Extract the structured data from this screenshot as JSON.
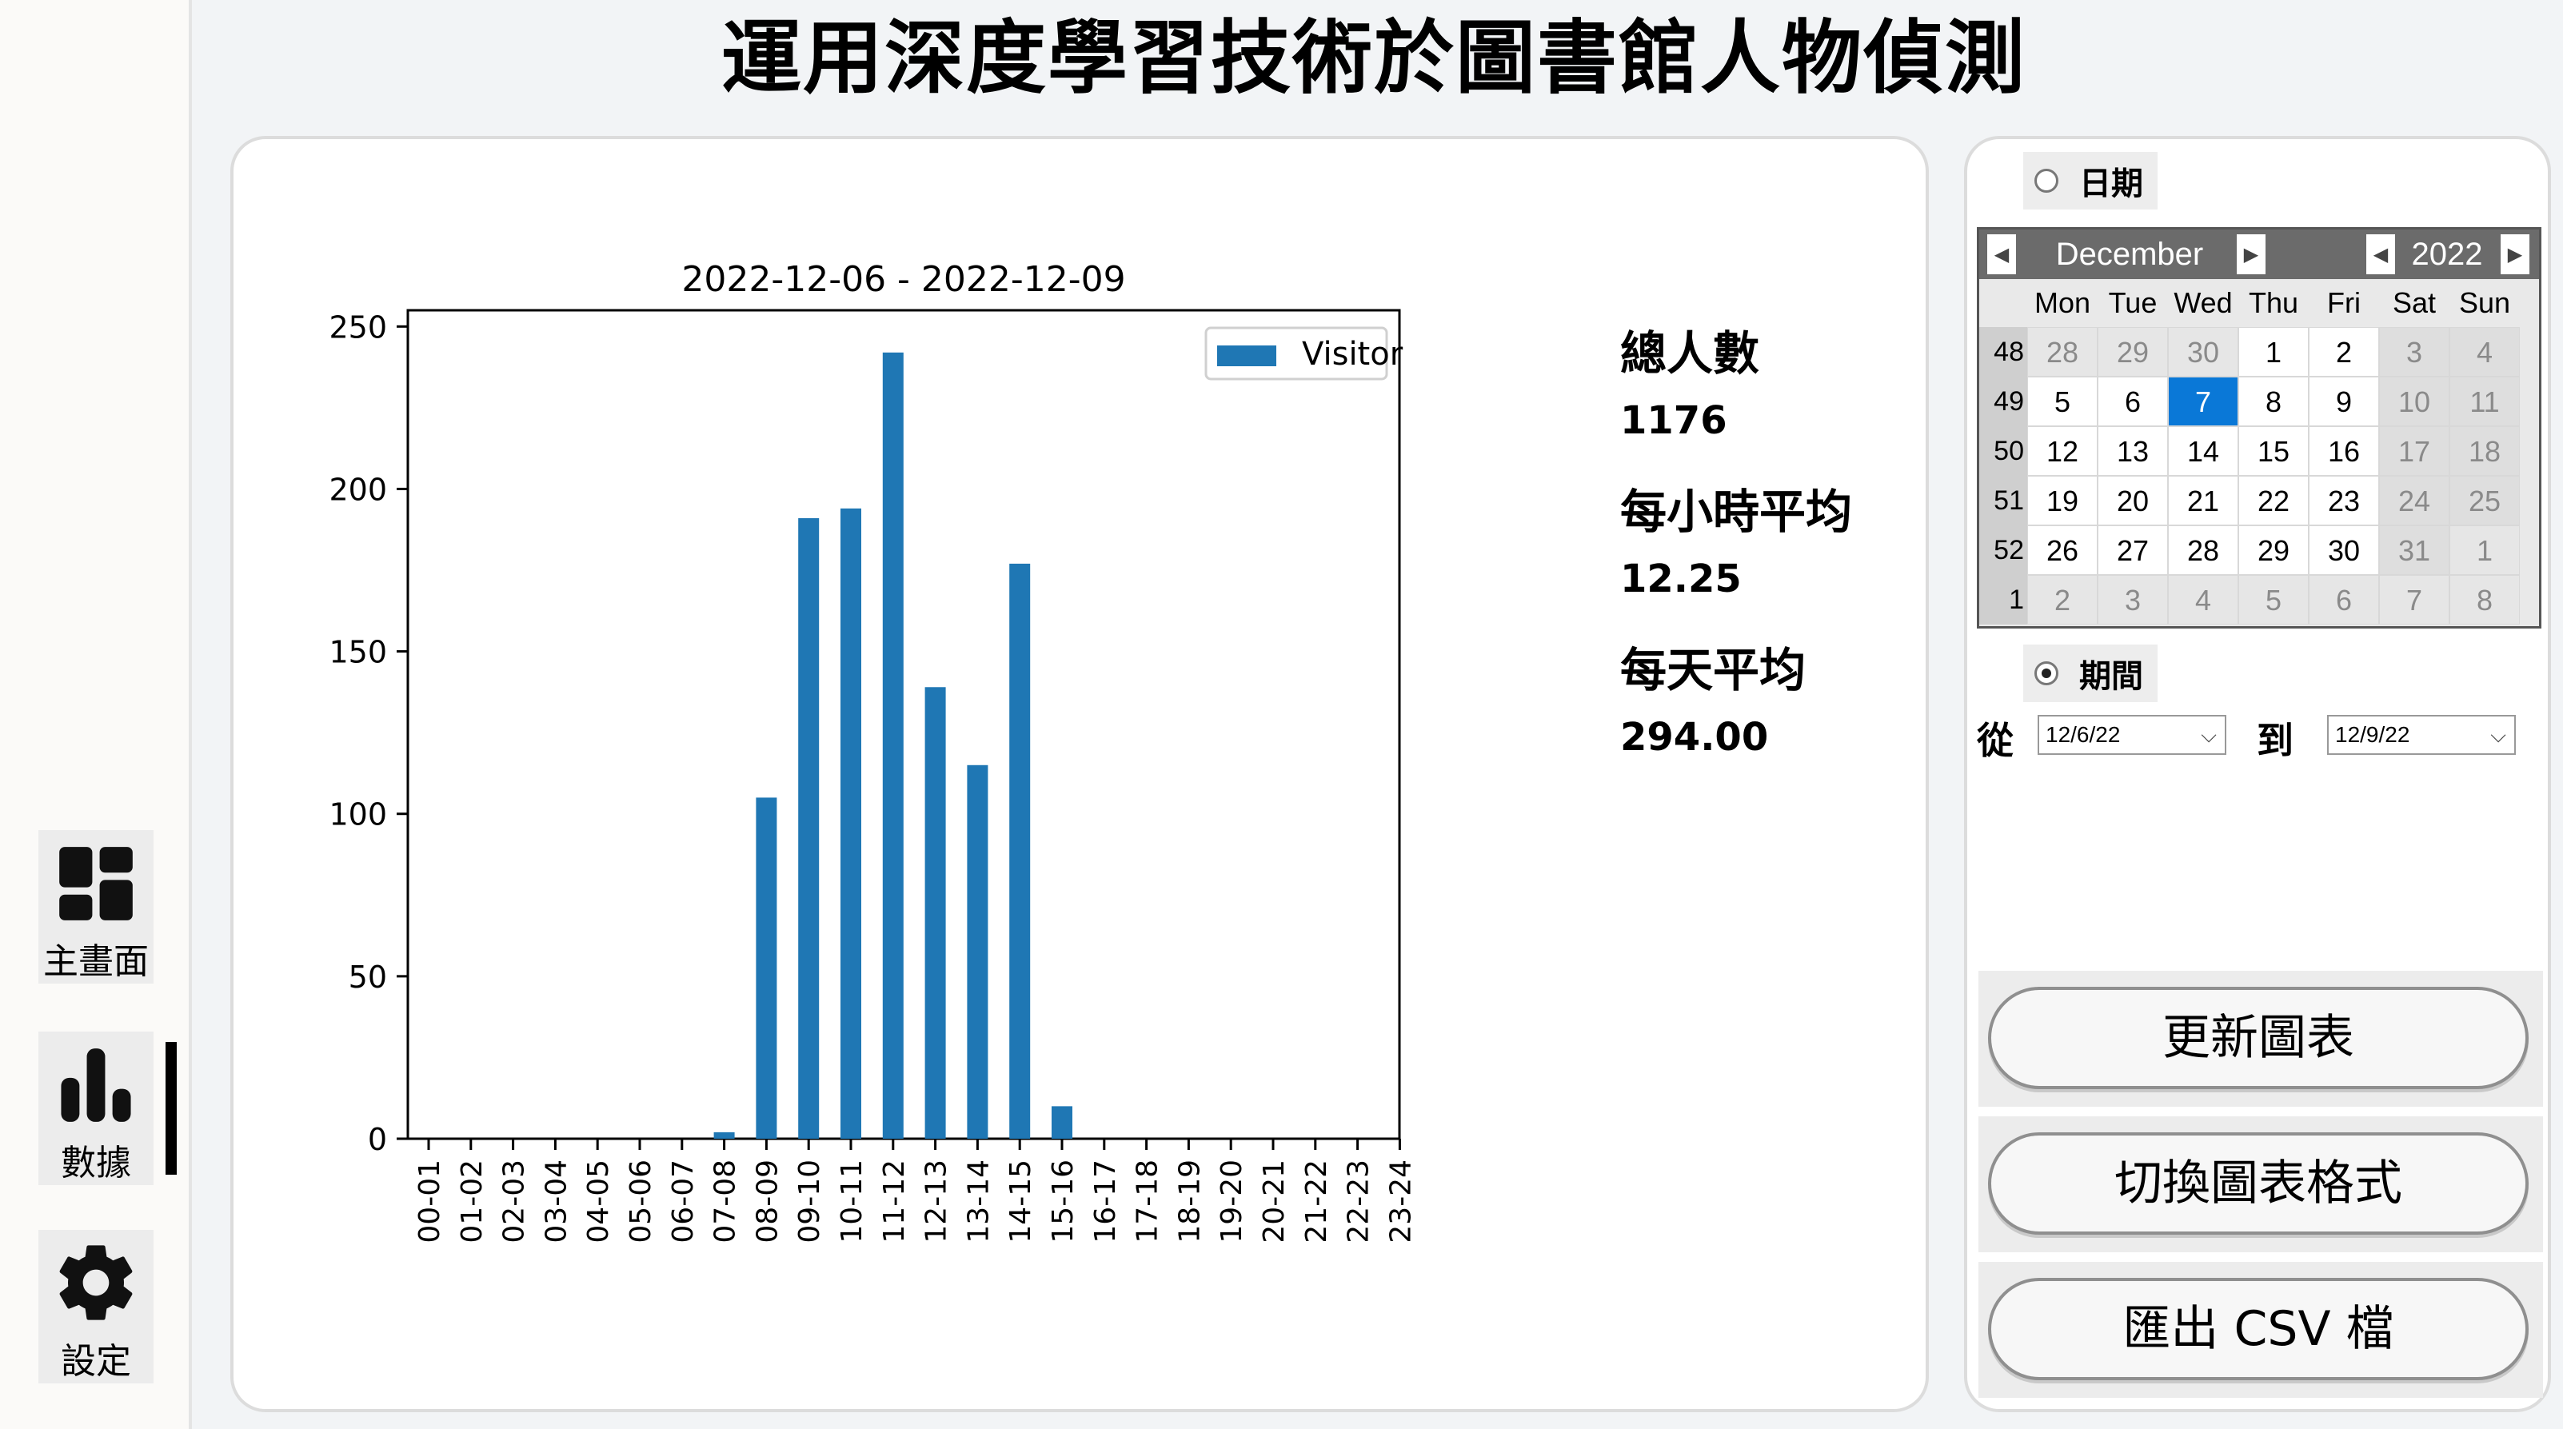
{
  "title": "運用深度學習技術於圖書館人物偵測",
  "sidebar": {
    "items": [
      {
        "label": "主畫面",
        "icon": "dashboard-icon"
      },
      {
        "label": "數據",
        "icon": "bar-chart-icon"
      },
      {
        "label": "設定",
        "icon": "gear-icon"
      }
    ],
    "active": "數據"
  },
  "chart_data": {
    "type": "bar",
    "title": "2022-12-06 - 2022-12-09",
    "categories": [
      "00-01",
      "01-02",
      "02-03",
      "03-04",
      "04-05",
      "05-06",
      "06-07",
      "07-08",
      "08-09",
      "09-10",
      "10-11",
      "11-12",
      "12-13",
      "13-14",
      "14-15",
      "15-16",
      "16-17",
      "17-18",
      "18-19",
      "19-20",
      "20-21",
      "21-22",
      "22-23",
      "23-24"
    ],
    "series": [
      {
        "name": "Visitor",
        "values": [
          0,
          0,
          0,
          0,
          0,
          0,
          0,
          2,
          105,
          191,
          194,
          242,
          139,
          115,
          177,
          10,
          0,
          0,
          0,
          0,
          0,
          0,
          0,
          0
        ]
      }
    ],
    "ylim": [
      0,
      255
    ],
    "yticks": [
      0,
      50,
      100,
      150,
      200,
      250
    ],
    "legend": "top-right",
    "color": "#1f77b4"
  },
  "stats": {
    "total_label": "總人數",
    "total_value": "1176",
    "hourly_label": "每小時平均",
    "hourly_value": "12.25",
    "daily_label": "每天平均",
    "daily_value": "294.00"
  },
  "date_mode": {
    "date_label": "日期",
    "period_label": "期間",
    "selected": "期間"
  },
  "calendar": {
    "month": "December",
    "year": "2022",
    "days_of_week": [
      "Mon",
      "Tue",
      "Wed",
      "Thu",
      "Fri",
      "Sat",
      "Sun"
    ],
    "weeks": [
      {
        "num": "48",
        "days": [
          "28",
          "29",
          "30",
          "1",
          "2",
          "3",
          "4"
        ]
      },
      {
        "num": "49",
        "days": [
          "5",
          "6",
          "7",
          "8",
          "9",
          "10",
          "11"
        ]
      },
      {
        "num": "50",
        "days": [
          "12",
          "13",
          "14",
          "15",
          "16",
          "17",
          "18"
        ]
      },
      {
        "num": "51",
        "days": [
          "19",
          "20",
          "21",
          "22",
          "23",
          "24",
          "25"
        ]
      },
      {
        "num": "52",
        "days": [
          "26",
          "27",
          "28",
          "29",
          "30",
          "31",
          "1"
        ]
      },
      {
        "num": "1",
        "days": [
          "2",
          "3",
          "4",
          "5",
          "6",
          "7",
          "8"
        ]
      }
    ],
    "selected_day": "7"
  },
  "range": {
    "from_label": "從",
    "from_value": "12/6/22",
    "to_label": "到",
    "to_value": "12/9/22"
  },
  "actions": {
    "update": "更新圖表",
    "switch_format": "切換圖表格式",
    "export_csv": "匯出 CSV 檔"
  }
}
